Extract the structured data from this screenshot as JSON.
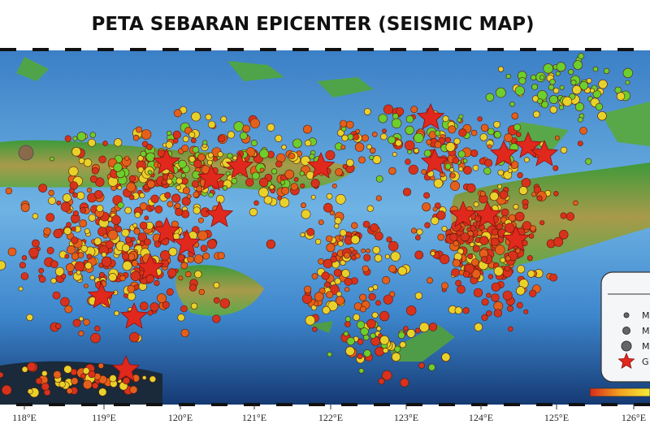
{
  "header": {
    "title": "PETA SEBARAN EPICENTER (SEISMIC MAP)"
  },
  "map": {
    "longitude_labels": [
      "118°E",
      "119°E",
      "120°E",
      "121°E",
      "122°E",
      "123°E",
      "124°E",
      "125°E",
      "126°E"
    ]
  },
  "legend": {
    "items": [
      "M",
      "M",
      "M",
      "G"
    ]
  }
}
